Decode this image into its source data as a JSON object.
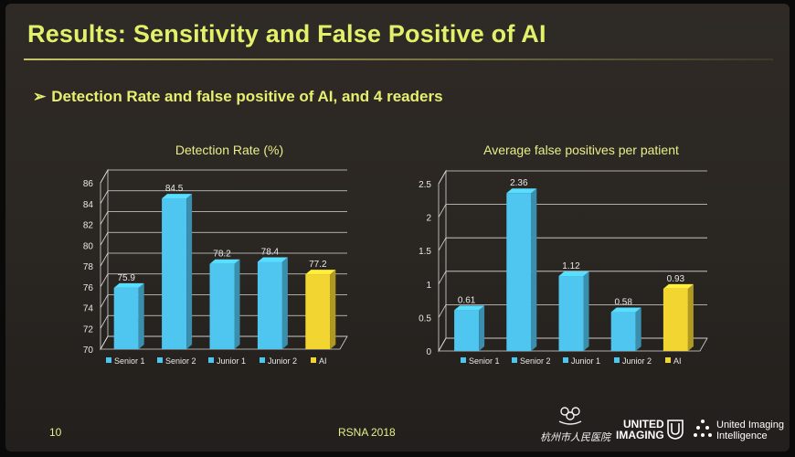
{
  "slide": {
    "title": "Results: Sensitivity and False Positive of AI",
    "subtitle": "Detection Rate and false positive of AI, and 4 readers",
    "subtitle_arrow": "➢",
    "page_number": "10",
    "conference": "RSNA 2018",
    "logo_hospital_text": "杭州市人民医院",
    "logo_united_line1": "UNITED",
    "logo_united_line2": "IMAGING",
    "logo_intelligence_line1": "United Imaging",
    "logo_intelligence_line2": "Intelligence"
  },
  "colors": {
    "accent_title": "#e3f06a",
    "bar_reader": "#4fc6f0",
    "bar_ai": "#f3d531",
    "gridline": "#d9d9d9",
    "tick_text": "#e8e8e8"
  },
  "chart_data": [
    {
      "type": "bar",
      "title": "Detection Rate (%)",
      "categories": [
        "Senior 1",
        "Senior 2",
        "Junior 1",
        "Junior 2",
        "AI"
      ],
      "values": [
        75.9,
        84.5,
        78.2,
        78.4,
        77.2
      ],
      "data_labels": [
        "75.9",
        "84.5",
        "78.2",
        "78.4",
        "77.2"
      ],
      "ylim": [
        70,
        86
      ],
      "yticks": [
        70,
        72,
        74,
        76,
        78,
        80,
        82,
        84,
        86
      ],
      "ytick_labels": [
        "70",
        "72",
        "74",
        "76",
        "78",
        "80",
        "82",
        "84",
        "86"
      ],
      "colors": [
        "#4fc6f0",
        "#4fc6f0",
        "#4fc6f0",
        "#4fc6f0",
        "#f3d531"
      ],
      "grid": true,
      "three_d": true,
      "legend_position": "bottom"
    },
    {
      "type": "bar",
      "title": "Average false positives per patient",
      "categories": [
        "Senior 1",
        "Senior 2",
        "Junior 1",
        "Junior 2",
        "AI"
      ],
      "values": [
        0.61,
        2.36,
        1.12,
        0.58,
        0.93
      ],
      "data_labels": [
        "0.61",
        "2.36",
        "1.12",
        "0.58",
        "0.93"
      ],
      "ylim": [
        0,
        2.5
      ],
      "yticks": [
        0,
        0.5,
        1,
        1.5,
        2,
        2.5
      ],
      "ytick_labels": [
        "0",
        "0.5",
        "1",
        "1.5",
        "2",
        "2.5"
      ],
      "colors": [
        "#4fc6f0",
        "#4fc6f0",
        "#4fc6f0",
        "#4fc6f0",
        "#f3d531"
      ],
      "grid": true,
      "three_d": true,
      "legend_position": "bottom"
    }
  ]
}
